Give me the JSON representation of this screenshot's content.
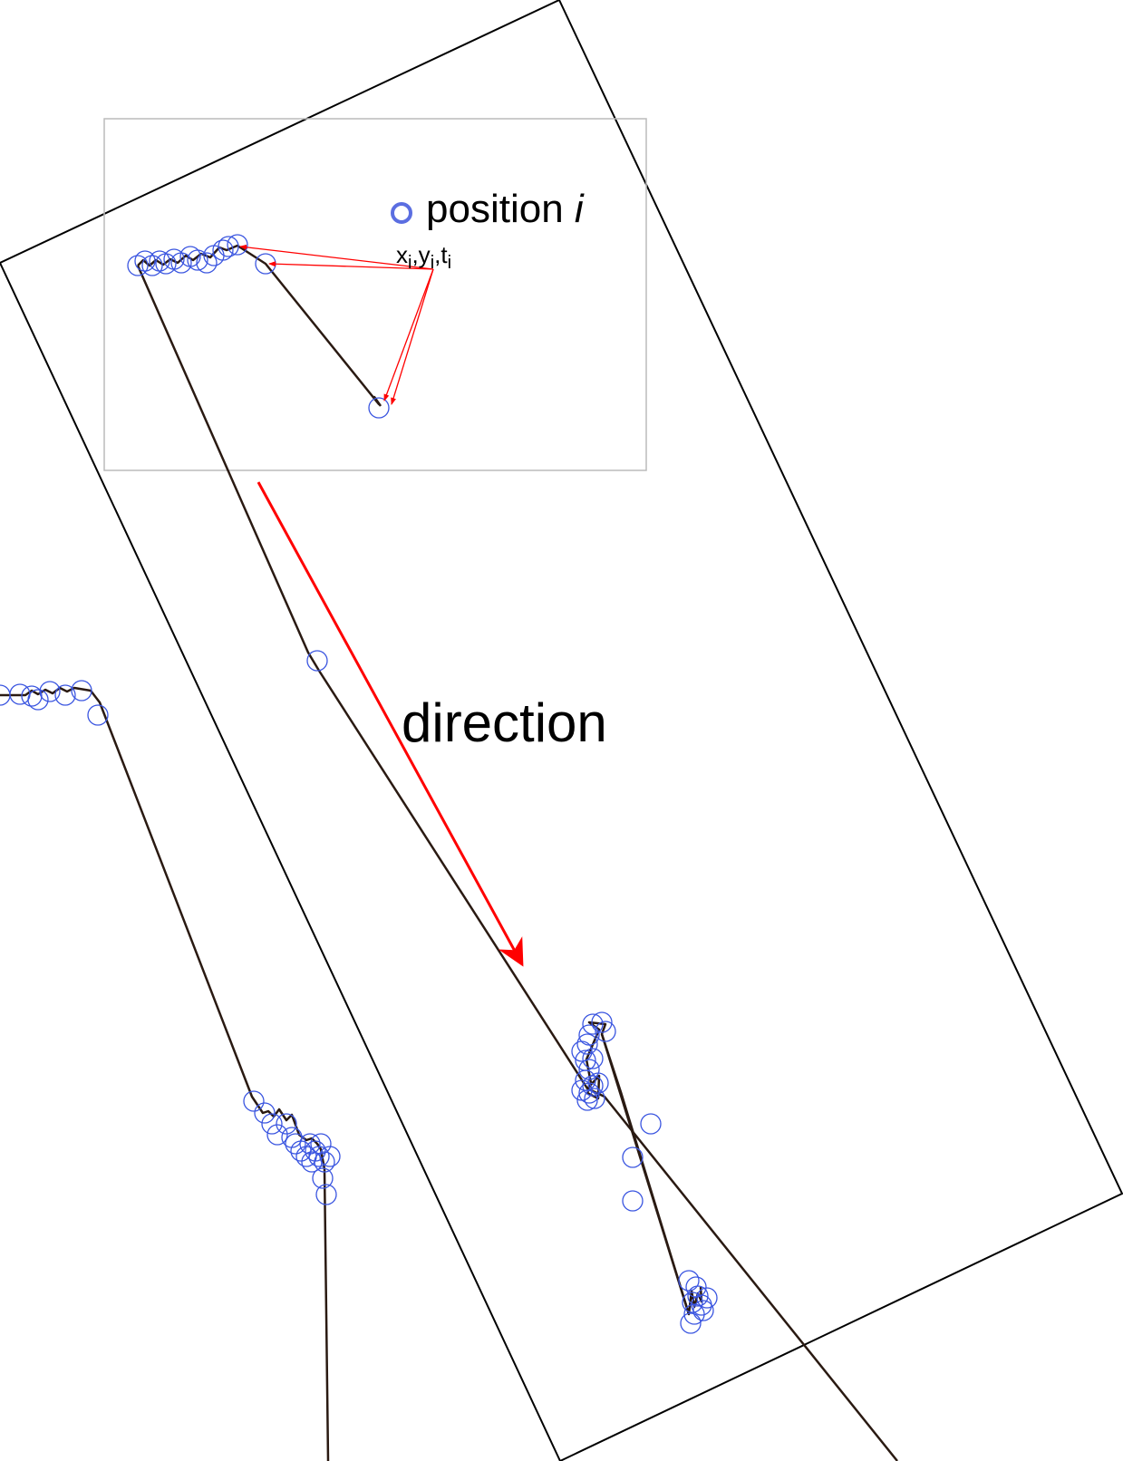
{
  "legend": {
    "label": "position",
    "index_var": "i",
    "marker_color": "#5b6ee1",
    "subscript_letter": "i",
    "coord_parts": [
      "x",
      ",y",
      ",t"
    ]
  },
  "direction_label": "direction",
  "colors": {
    "track": "#2a1a12",
    "position_marker": "#3a55e0",
    "arrow": "#ff0000",
    "box": "#000000",
    "zoom_frame": "#bbbbbb"
  }
}
